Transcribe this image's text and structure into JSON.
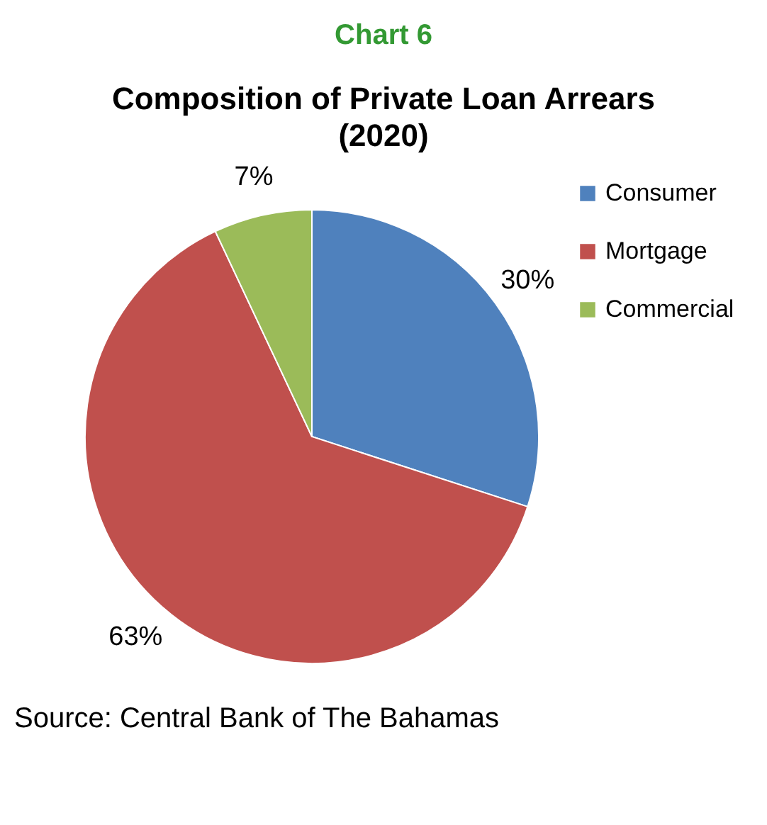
{
  "chart_data": {
    "type": "pie",
    "subtitle": "Chart 6",
    "title": "Composition of Private Loan Arrears (2020)",
    "categories": [
      "Consumer",
      "Mortgage",
      "Commercial"
    ],
    "values": [
      30,
      63,
      7
    ],
    "colors": [
      "#4f81bd",
      "#c0504d",
      "#9bbb59"
    ],
    "value_labels": [
      "30%",
      "63%",
      "7%"
    ],
    "legend": "right",
    "annotations": [
      "Source: Central Bank of The Bahamas"
    ]
  }
}
